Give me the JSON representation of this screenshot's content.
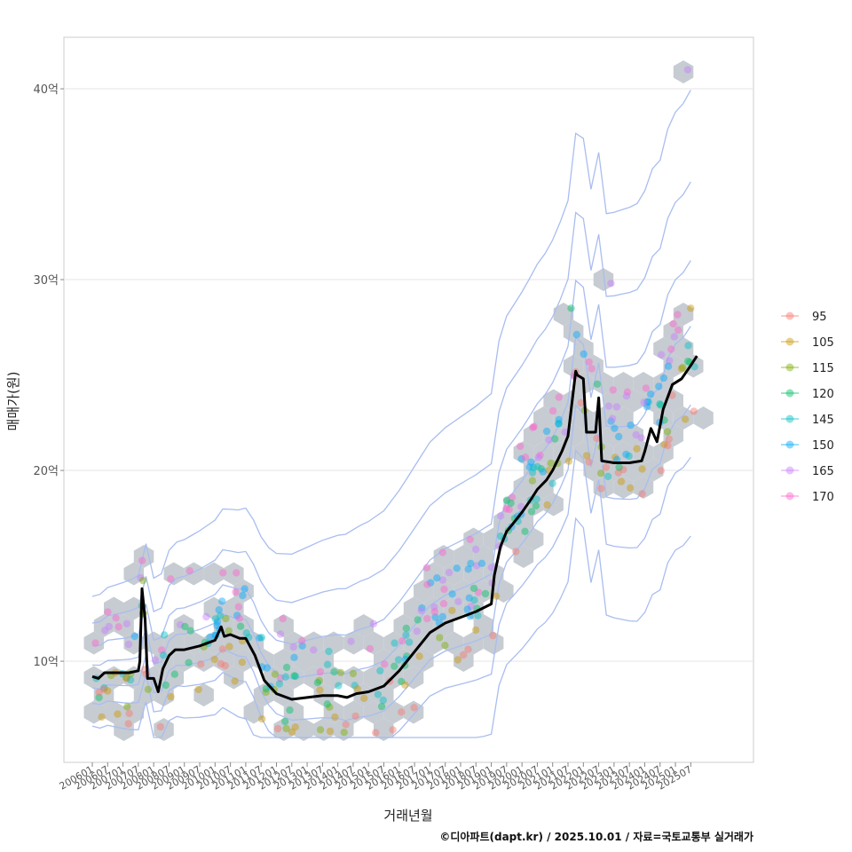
{
  "chart_data": {
    "type": "scatter",
    "xlabel": "거래년월",
    "ylabel": "매매가(원)",
    "caption": "©디아파트(dapt.kr) / 2025.10.01 / 자료=국토교통부 실거래가",
    "ylim": [
      4.7,
      42.7
    ],
    "y_ticks": [
      {
        "value": 10,
        "label": "10억"
      },
      {
        "value": 20,
        "label": "20억"
      },
      {
        "value": 30,
        "label": "30억"
      },
      {
        "value": 40,
        "label": "40억"
      }
    ],
    "x_range": [
      2006.0,
      2026.3
    ],
    "x_ticks": [
      {
        "value": 2006.0,
        "label": "200601"
      },
      {
        "value": 2006.5,
        "label": "200607"
      },
      {
        "value": 2007.0,
        "label": "200701"
      },
      {
        "value": 2007.5,
        "label": "200707"
      },
      {
        "value": 2008.0,
        "label": "200801"
      },
      {
        "value": 2008.5,
        "label": "200807"
      },
      {
        "value": 2009.0,
        "label": "200901"
      },
      {
        "value": 2009.5,
        "label": "200907"
      },
      {
        "value": 2010.0,
        "label": "201001"
      },
      {
        "value": 2010.5,
        "label": "201007"
      },
      {
        "value": 2011.0,
        "label": "201101"
      },
      {
        "value": 2011.5,
        "label": "201107"
      },
      {
        "value": 2012.0,
        "label": "201201"
      },
      {
        "value": 2012.5,
        "label": "201207"
      },
      {
        "value": 2013.0,
        "label": "201301"
      },
      {
        "value": 2013.5,
        "label": "201307"
      },
      {
        "value": 2014.0,
        "label": "201401"
      },
      {
        "value": 2014.5,
        "label": "201407"
      },
      {
        "value": 2015.0,
        "label": "201501"
      },
      {
        "value": 2015.5,
        "label": "201507"
      },
      {
        "value": 2016.0,
        "label": "201601"
      },
      {
        "value": 2016.5,
        "label": "201607"
      },
      {
        "value": 2017.0,
        "label": "201701"
      },
      {
        "value": 2017.5,
        "label": "201707"
      },
      {
        "value": 2018.0,
        "label": "201801"
      },
      {
        "value": 2018.5,
        "label": "201807"
      },
      {
        "value": 2019.0,
        "label": "201901"
      },
      {
        "value": 2019.5,
        "label": "201907"
      },
      {
        "value": 2020.0,
        "label": "202001"
      },
      {
        "value": 2020.5,
        "label": "202007"
      },
      {
        "value": 2021.0,
        "label": "202101"
      },
      {
        "value": 2021.5,
        "label": "202107"
      },
      {
        "value": 2022.0,
        "label": "202201"
      },
      {
        "value": 2022.5,
        "label": "202207"
      },
      {
        "value": 2023.0,
        "label": "202301"
      },
      {
        "value": 2023.5,
        "label": "202307"
      },
      {
        "value": 2024.0,
        "label": "202401"
      },
      {
        "value": 2024.5,
        "label": "202407"
      },
      {
        "value": 2025.0,
        "label": "202501"
      },
      {
        "value": 2025.5,
        "label": "202507"
      }
    ],
    "legend": [
      {
        "label": "95",
        "color": "#F8766D"
      },
      {
        "label": "105",
        "color": "#CD9600"
      },
      {
        "label": "115",
        "color": "#7CAE00"
      },
      {
        "label": "120",
        "color": "#00BE67"
      },
      {
        "label": "145",
        "color": "#00BFC4"
      },
      {
        "label": "150",
        "color": "#00A9FF"
      },
      {
        "label": "165",
        "color": "#C77CFF"
      },
      {
        "label": "170",
        "color": "#FF61CC"
      }
    ],
    "trend_line": {
      "name": "median",
      "x": [
        2006.0,
        2006.2,
        2006.4,
        2006.8,
        2007.2,
        2007.5,
        2007.55,
        2007.62,
        2007.72,
        2007.8,
        2008.0,
        2008.15,
        2008.3,
        2008.5,
        2008.7,
        2009.0,
        2009.5,
        2010.0,
        2010.2,
        2010.3,
        2010.5,
        2010.8,
        2011.0,
        2011.3,
        2011.6,
        2012.0,
        2012.5,
        2013.0,
        2013.5,
        2014.0,
        2014.3,
        2014.6,
        2015.0,
        2015.5,
        2016.0,
        2016.5,
        2017.0,
        2017.5,
        2018.0,
        2018.5,
        2019.0,
        2019.1,
        2019.3,
        2019.5,
        2019.7,
        2020.0,
        2020.3,
        2020.5,
        2020.8,
        2021.0,
        2021.3,
        2021.5,
        2021.75,
        2021.8,
        2022.0,
        2022.1,
        2022.4,
        2022.5,
        2022.6,
        2023.0,
        2023.5,
        2023.9,
        2024.0,
        2024.2,
        2024.4,
        2024.6,
        2024.9,
        2025.2,
        2025.5,
        2025.7
      ],
      "y": [
        9.2,
        9.1,
        9.4,
        9.4,
        9.4,
        9.5,
        10.0,
        13.8,
        12.2,
        9.1,
        9.1,
        8.4,
        9.6,
        10.3,
        10.6,
        10.6,
        10.8,
        11.1,
        11.8,
        11.3,
        11.4,
        11.2,
        11.2,
        10.3,
        9.0,
        8.3,
        8.0,
        8.1,
        8.2,
        8.2,
        8.1,
        8.3,
        8.4,
        8.7,
        9.5,
        10.5,
        11.5,
        12.0,
        12.3,
        12.6,
        13.0,
        14.5,
        16.0,
        16.8,
        17.2,
        17.8,
        18.5,
        19.0,
        19.5,
        20.0,
        21.0,
        21.8,
        25.2,
        25.0,
        24.8,
        22.0,
        22.0,
        23.8,
        20.5,
        20.4,
        20.4,
        20.5,
        21.0,
        22.2,
        21.5,
        23.2,
        24.5,
        24.8,
        25.5,
        26.0
      ]
    }
  }
}
